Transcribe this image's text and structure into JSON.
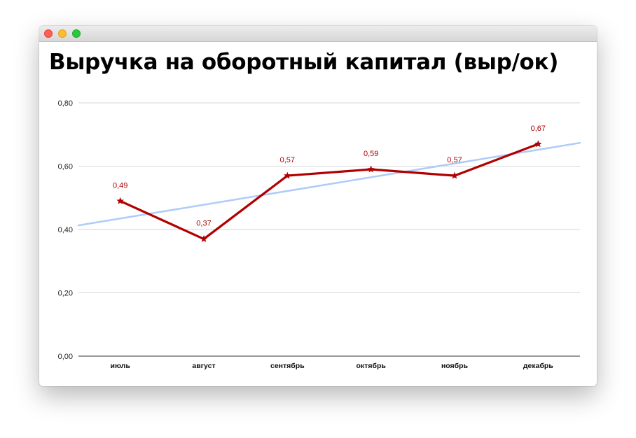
{
  "chart_data": {
    "type": "line",
    "title": "Выручка на оборотный капитал (выр/ок)",
    "categories": [
      "июль",
      "август",
      "сентябрь",
      "октябрь",
      "ноябрь",
      "декабрь"
    ],
    "series": [
      {
        "values": [
          0.49,
          0.37,
          0.57,
          0.59,
          0.57,
          0.67
        ],
        "data_labels": [
          "0,49",
          "0,37",
          "0,57",
          "0,59",
          "0,57",
          "0,67"
        ],
        "color": "#b00000",
        "marker": "star"
      }
    ],
    "trendline": {
      "type": "linear",
      "color": "#aecbfa"
    },
    "ylim": [
      0,
      0.8
    ],
    "yticks": [
      0,
      0.2,
      0.4,
      0.6,
      0.8
    ],
    "ytick_labels": [
      "0,00",
      "0,20",
      "0,40",
      "0,60",
      "0,80"
    ],
    "grid": true,
    "legend": "none",
    "xlabel": "",
    "ylabel": ""
  }
}
